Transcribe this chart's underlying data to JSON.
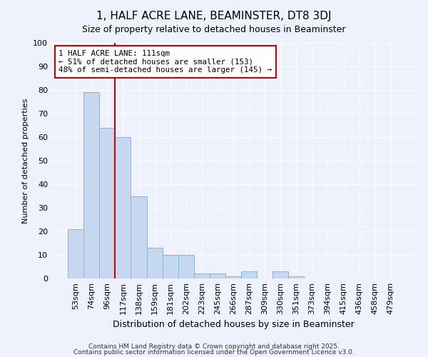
{
  "title": "1, HALF ACRE LANE, BEAMINSTER, DT8 3DJ",
  "subtitle": "Size of property relative to detached houses in Beaminster",
  "xlabel": "Distribution of detached houses by size in Beaminster",
  "ylabel": "Number of detached properties",
  "bar_color": "#c5d8f0",
  "bar_edge_color": "#8ab4d8",
  "background_color": "#eef2fc",
  "grid_color": "#ffffff",
  "categories": [
    "53sqm",
    "74sqm",
    "96sqm",
    "117sqm",
    "138sqm",
    "159sqm",
    "181sqm",
    "202sqm",
    "223sqm",
    "245sqm",
    "266sqm",
    "287sqm",
    "309sqm",
    "330sqm",
    "351sqm",
    "373sqm",
    "394sqm",
    "415sqm",
    "436sqm",
    "458sqm",
    "479sqm"
  ],
  "values": [
    21,
    79,
    64,
    60,
    35,
    13,
    10,
    10,
    2,
    2,
    1,
    3,
    0,
    3,
    1,
    0,
    0,
    0,
    0,
    0,
    0
  ],
  "ylim": [
    0,
    100
  ],
  "yticks": [
    0,
    10,
    20,
    30,
    40,
    50,
    60,
    70,
    80,
    90,
    100
  ],
  "property_line_x": 3.0,
  "annotation_text": "1 HALF ACRE LANE: 111sqm\n← 51% of detached houses are smaller (153)\n48% of semi-detached houses are larger (145) →",
  "annotation_box_color": "#ffffff",
  "annotation_box_edge": "#cc0000",
  "red_line_color": "#cc0000",
  "footer_line1": "Contains HM Land Registry data © Crown copyright and database right 2025.",
  "footer_line2": "Contains public sector information licensed under the Open Government Licence v3.0.",
  "title_fontsize": 11,
  "subtitle_fontsize": 9,
  "xlabel_fontsize": 9,
  "ylabel_fontsize": 8,
  "tick_fontsize": 8,
  "footer_fontsize": 6.5
}
